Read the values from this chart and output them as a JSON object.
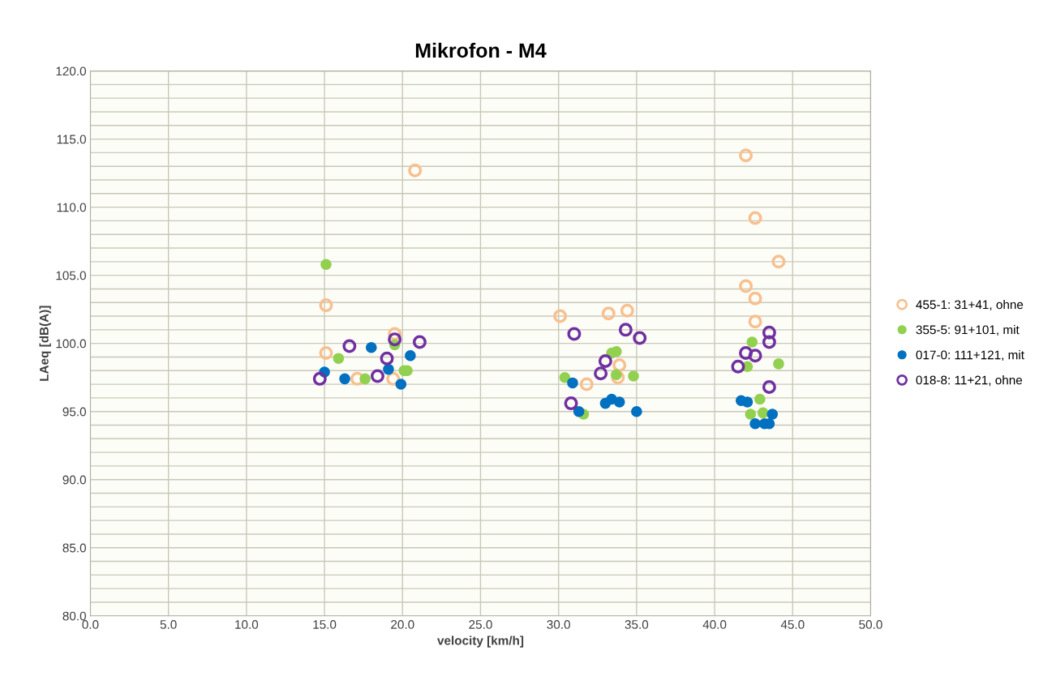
{
  "chart_data": {
    "type": "scatter",
    "title": "Mikrofon - M4",
    "xlabel": "velocity [km/h]",
    "ylabel": "LAeq [dB(A)]",
    "xlim": [
      0,
      50
    ],
    "ylim": [
      80,
      120
    ],
    "xticks": [
      {
        "value": 0,
        "label": "0.0"
      },
      {
        "value": 5,
        "label": "5.0"
      },
      {
        "value": 10,
        "label": "10.0"
      },
      {
        "value": 15,
        "label": "15.0"
      },
      {
        "value": 20,
        "label": "20.0"
      },
      {
        "value": 25,
        "label": "25.0"
      },
      {
        "value": 30,
        "label": "30.0"
      },
      {
        "value": 35,
        "label": "35.0"
      },
      {
        "value": 40,
        "label": "40.0"
      },
      {
        "value": 45,
        "label": "45.0"
      },
      {
        "value": 50,
        "label": "50.0"
      }
    ],
    "yticks": [
      {
        "value": 80,
        "label": "80.0"
      },
      {
        "value": 81,
        "label": null
      },
      {
        "value": 82,
        "label": null
      },
      {
        "value": 83,
        "label": null
      },
      {
        "value": 84,
        "label": null
      },
      {
        "value": 85,
        "label": "85.0"
      },
      {
        "value": 86,
        "label": null
      },
      {
        "value": 87,
        "label": null
      },
      {
        "value": 88,
        "label": null
      },
      {
        "value": 89,
        "label": null
      },
      {
        "value": 90,
        "label": "90.0"
      },
      {
        "value": 91,
        "label": null
      },
      {
        "value": 92,
        "label": null
      },
      {
        "value": 93,
        "label": null
      },
      {
        "value": 94,
        "label": null
      },
      {
        "value": 95,
        "label": "95.0"
      },
      {
        "value": 96,
        "label": null
      },
      {
        "value": 97,
        "label": null
      },
      {
        "value": 98,
        "label": null
      },
      {
        "value": 99,
        "label": null
      },
      {
        "value": 100,
        "label": "100.0"
      },
      {
        "value": 101,
        "label": null
      },
      {
        "value": 102,
        "label": null
      },
      {
        "value": 103,
        "label": null
      },
      {
        "value": 104,
        "label": null
      },
      {
        "value": 105,
        "label": "105.0"
      },
      {
        "value": 106,
        "label": null
      },
      {
        "value": 107,
        "label": null
      },
      {
        "value": 108,
        "label": null
      },
      {
        "value": 109,
        "label": null
      },
      {
        "value": 110,
        "label": "110.0"
      },
      {
        "value": 111,
        "label": null
      },
      {
        "value": 112,
        "label": null
      },
      {
        "value": 113,
        "label": null
      },
      {
        "value": 114,
        "label": null
      },
      {
        "value": 115,
        "label": "115.0"
      },
      {
        "value": 116,
        "label": null
      },
      {
        "value": 117,
        "label": null
      },
      {
        "value": 118,
        "label": null
      },
      {
        "value": 119,
        "label": null
      },
      {
        "value": 120,
        "label": "120.0"
      }
    ],
    "grid": true,
    "legend": "right",
    "marker": "circle",
    "series": [
      {
        "name": "455-1: 31+41, ohne",
        "color": "#f8c08f",
        "x": [
          20.8,
          15.1,
          15.1,
          17.1,
          19.5,
          19.4,
          30.1,
          33.2,
          34.4,
          33.9,
          33.8,
          31.8,
          42.0,
          42.6,
          44.1,
          42.0,
          42.6,
          42.6
        ],
        "values": [
          112.7,
          102.8,
          99.3,
          97.4,
          100.7,
          97.4,
          102.0,
          102.2,
          102.4,
          98.4,
          97.5,
          97.0,
          113.8,
          109.2,
          106.0,
          104.2,
          103.3,
          101.6
        ]
      },
      {
        "name": "355-5: 91+101, mit",
        "color": "#92d050",
        "x": [
          15.1,
          15.9,
          17.6,
          19.5,
          20.1,
          20.3,
          30.4,
          31.6,
          33.4,
          33.7,
          33.7,
          34.8,
          42.4,
          42.1,
          44.1,
          42.9,
          42.3,
          43.1
        ],
        "values": [
          105.8,
          98.9,
          97.4,
          99.9,
          98.0,
          98.0,
          97.5,
          94.8,
          99.3,
          99.4,
          97.7,
          97.6,
          100.1,
          98.3,
          98.5,
          95.9,
          94.8,
          94.9
        ]
      },
      {
        "name": "017-0: 111+121, mit",
        "color": "#0070c0",
        "x": [
          15.0,
          16.3,
          18.0,
          19.1,
          20.5,
          19.9,
          30.9,
          31.3,
          33.0,
          33.4,
          33.9,
          35.0,
          41.7,
          42.1,
          42.6,
          43.2,
          43.5,
          43.7
        ],
        "values": [
          97.9,
          97.4,
          99.7,
          98.1,
          99.1,
          97.0,
          97.1,
          95.0,
          95.6,
          95.9,
          95.7,
          95.0,
          95.8,
          95.7,
          94.1,
          94.1,
          94.1,
          94.8
        ]
      },
      {
        "name": "018-8: 11+21, ohne",
        "color": "#7030a0",
        "x": [
          14.7,
          16.6,
          19.0,
          18.4,
          19.5,
          21.1,
          31.0,
          34.3,
          35.2,
          33.0,
          32.7,
          30.8,
          43.5,
          43.5,
          42.0,
          42.6,
          41.5,
          43.5
        ],
        "values": [
          97.4,
          99.8,
          98.9,
          97.6,
          100.3,
          100.1,
          100.7,
          101.0,
          100.4,
          98.7,
          97.8,
          95.6,
          100.8,
          100.1,
          99.3,
          99.1,
          98.3,
          96.8
        ]
      }
    ]
  }
}
